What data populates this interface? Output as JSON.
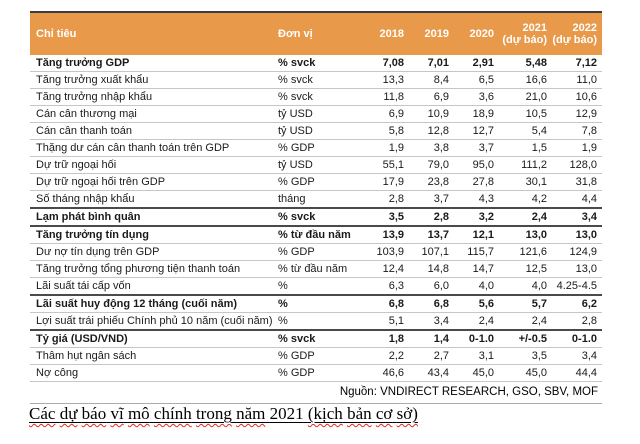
{
  "table": {
    "header": [
      {
        "text": "Chỉ tiêu"
      },
      {
        "text": "Đơn vị"
      },
      {
        "text": "2018"
      },
      {
        "text": "2019"
      },
      {
        "text": "2020"
      },
      {
        "text": "2021",
        "sub": "(dự báo)"
      },
      {
        "text": "2022",
        "sub": "(dự báo)"
      }
    ],
    "rows": [
      {
        "label": "Tăng trưởng GDP",
        "unit": "% svck",
        "values": [
          "7,08",
          "7,01",
          "2,91",
          "5,48",
          "7,12"
        ],
        "bold": true
      },
      {
        "label": "Tăng trưởng xuất khẩu",
        "unit": "% svck",
        "values": [
          "13,3",
          "8,4",
          "6,5",
          "16,6",
          "11,0"
        ],
        "bold": false
      },
      {
        "label": "Tăng trưởng nhập khẩu",
        "unit": "% svck",
        "values": [
          "11,8",
          "6,9",
          "3,6",
          "21,0",
          "10,6"
        ],
        "bold": false
      },
      {
        "label": "Cán cân thương mại",
        "unit": "tỷ USD",
        "values": [
          "6,9",
          "10,9",
          "18,9",
          "10,5",
          "12,9"
        ],
        "bold": false
      },
      {
        "label": "Cán cân thanh toán",
        "unit": "tỷ USD",
        "values": [
          "5,8",
          "12,8",
          "12,7",
          "5,4",
          "7,8"
        ],
        "bold": false
      },
      {
        "label": "Thặng dư cán cân thanh toán trên GDP",
        "unit": "% GDP",
        "values": [
          "1,9",
          "3,8",
          "3,7",
          "1,5",
          "1,9"
        ],
        "bold": false
      },
      {
        "label": "Dự trữ ngoại hối",
        "unit": "tỷ USD",
        "values": [
          "55,1",
          "79,0",
          "95,0",
          "111,2",
          "128,0"
        ],
        "bold": false
      },
      {
        "label": "Dự trữ ngoại hối trên GDP",
        "unit": "% GDP",
        "values": [
          "17,9",
          "23,8",
          "27,8",
          "30,1",
          "31,8"
        ],
        "bold": false
      },
      {
        "label": "Số tháng nhập khẩu",
        "unit": "tháng",
        "values": [
          "2,8",
          "3,7",
          "4,3",
          "4,2",
          "4,4"
        ],
        "bold": false
      },
      {
        "label": "Lạm phát bình quân",
        "unit": "% svck",
        "values": [
          "3,5",
          "2,8",
          "3,2",
          "2,4",
          "3,4"
        ],
        "bold": true
      },
      {
        "label": "Tăng trưởng tín dụng",
        "unit": "% từ đầu năm",
        "values": [
          "13,9",
          "13,7",
          "12,1",
          "13,0",
          "13,0"
        ],
        "bold": true
      },
      {
        "label": "Dư nợ tín dụng trên GDP",
        "unit": "% GDP",
        "values": [
          "103,9",
          "107,1",
          "115,7",
          "121,6",
          "124,9"
        ],
        "bold": false
      },
      {
        "label": "Tăng trưởng tổng phương tiện thanh toán",
        "unit": "% từ đầu năm",
        "values": [
          "12,4",
          "14,8",
          "14,7",
          "12,5",
          "13,0"
        ],
        "bold": false
      },
      {
        "label": "Lãi suất tái cấp vốn",
        "unit": "%",
        "values": [
          "6,3",
          "6,0",
          "4,0",
          "4,0",
          "4.25-4.5"
        ],
        "bold": false
      },
      {
        "label": "Lãi suất huy động 12 tháng (cuối năm)",
        "unit": "%",
        "values": [
          "6,8",
          "6,8",
          "5,6",
          "5,7",
          "6,2"
        ],
        "bold": true
      },
      {
        "label": "Lợi suất trái phiếu Chính phủ 10 năm (cuối năm)",
        "unit": "%",
        "values": [
          "5,1",
          "3,4",
          "2,4",
          "2,4",
          "2,8"
        ],
        "bold": false
      },
      {
        "label": "Tỷ giá (USD/VND)",
        "unit": "% svck",
        "values": [
          "1,8",
          "1,4",
          "0-1.0",
          "+/-0.5",
          "0-1.0"
        ],
        "bold": true
      },
      {
        "label": "Thâm hụt ngân sách",
        "unit": "% GDP",
        "values": [
          "2,2",
          "2,7",
          "3,1",
          "3,5",
          "3,4"
        ],
        "bold": false
      },
      {
        "label": "Nợ công",
        "unit": "% GDP",
        "values": [
          "46,6",
          "43,4",
          "45,0",
          "45,0",
          "44,4"
        ],
        "bold": false
      }
    ],
    "source": "Nguồn: VNDIRECT RESEARCH, GSO, SBV, MOF"
  },
  "caption": {
    "text": "Các dự báo vĩ mô chính trong năm 2021 (kịch bản cơ sở)",
    "unmarked_tokens": [
      "2021"
    ]
  },
  "colors": {
    "header_bg": "#E8994A",
    "header_text": "#FFFFFF",
    "rule_dark": "#3B3B3B",
    "row_border": "#C6C6C6",
    "bold_border": "#4A4A4A",
    "source_border": "#ABABAB",
    "spellcheck_red": "#E02B20"
  }
}
